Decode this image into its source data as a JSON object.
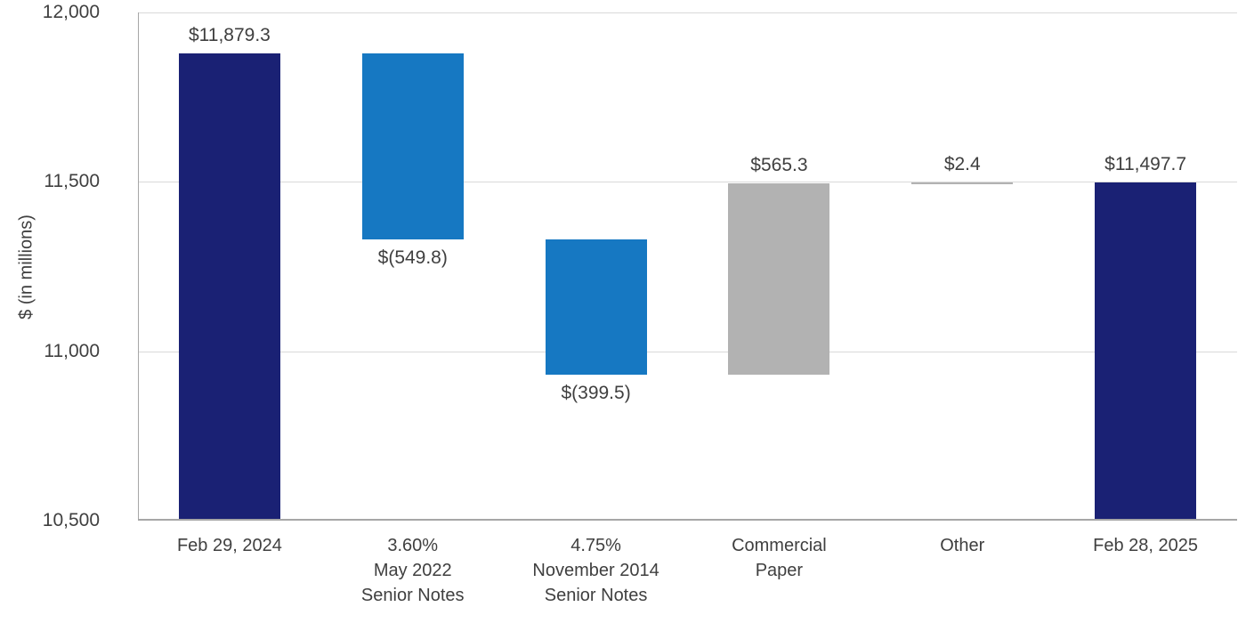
{
  "chart_data": {
    "type": "waterfall",
    "title": "",
    "ylabel": "$ (in millions)",
    "ylim": [
      10500,
      12000
    ],
    "grid": true,
    "legend": false,
    "yticks": [
      {
        "value": 12000,
        "label": "12,000"
      },
      {
        "value": 11500,
        "label": "11,500"
      },
      {
        "value": 11000,
        "label": "11,000"
      },
      {
        "value": 10500,
        "label": "10,500"
      }
    ],
    "bars": [
      {
        "category_lines": [
          "Feb 29, 2024"
        ],
        "kind": "total",
        "value": 11879.3,
        "start": 10500,
        "end": 11879.3,
        "value_label": "$11,879.3",
        "label_position": "above"
      },
      {
        "category_lines": [
          "3.60%",
          "May 2022",
          "Senior Notes"
        ],
        "kind": "decrease",
        "value": -549.8,
        "start": 11879.3,
        "end": 11329.5,
        "value_label": "$(549.8)",
        "label_position": "below"
      },
      {
        "category_lines": [
          "4.75%",
          "November 2014",
          "Senior Notes"
        ],
        "kind": "decrease",
        "value": -399.5,
        "start": 11329.5,
        "end": 10930.0,
        "value_label": "$(399.5)",
        "label_position": "below"
      },
      {
        "category_lines": [
          "Commercial",
          "Paper"
        ],
        "kind": "increase",
        "value": 565.3,
        "start": 10930.0,
        "end": 11495.3,
        "value_label": "$565.3",
        "label_position": "above"
      },
      {
        "category_lines": [
          "Other"
        ],
        "kind": "increase",
        "value": 2.4,
        "start": 11495.3,
        "end": 11497.7,
        "value_label": "$2.4",
        "label_position": "above"
      },
      {
        "category_lines": [
          "Feb 28, 2025"
        ],
        "kind": "total",
        "value": 11497.7,
        "start": 10500,
        "end": 11497.7,
        "value_label": "$11,497.7",
        "label_position": "above"
      }
    ],
    "colors": {
      "total": "#1a2174",
      "decrease": "#1678c2",
      "increase": "#b2b2b2",
      "gridline": "#d9d9d9",
      "axis_line": "#a6a6a6",
      "text": "#3f3f3f"
    }
  }
}
